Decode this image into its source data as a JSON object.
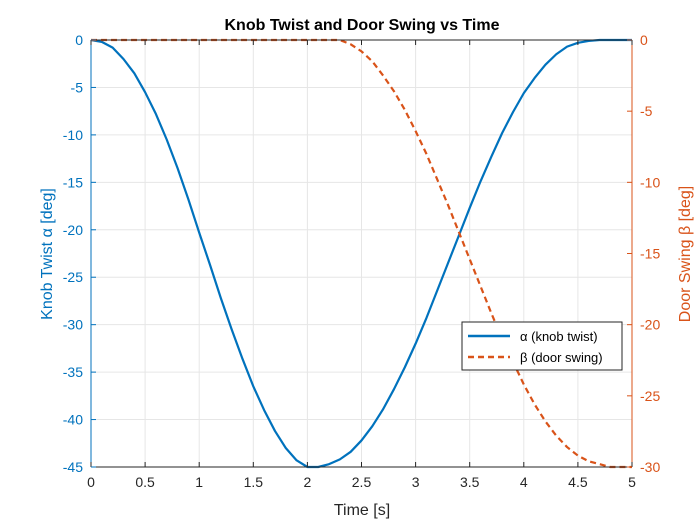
{
  "chart_data": {
    "type": "line",
    "title": "Knob Twist and Door Swing vs Time",
    "xlabel": "Time [s]",
    "ylabel_left": "Knob Twist α [deg]",
    "ylabel_right": "Door Swing β [deg]",
    "xlim": [
      0,
      5
    ],
    "ylim_left": [
      -45,
      0
    ],
    "ylim_right": [
      -30,
      0
    ],
    "x_ticks": [
      0,
      0.5,
      1,
      1.5,
      2,
      2.5,
      3,
      3.5,
      4,
      4.5,
      5
    ],
    "x_tick_labels": [
      "0",
      "0.5",
      "1",
      "1.5",
      "2",
      "2.5",
      "3",
      "3.5",
      "4",
      "4.5",
      "5"
    ],
    "y_left_ticks": [
      0,
      -5,
      -10,
      -15,
      -20,
      -25,
      -30,
      -35,
      -40,
      -45
    ],
    "y_left_tick_labels": [
      "0",
      "-5",
      "-10",
      "-15",
      "-20",
      "-25",
      "-30",
      "-35",
      "-40",
      "-45"
    ],
    "y_right_ticks": [
      0,
      -5,
      -10,
      -15,
      -20,
      -25,
      -30
    ],
    "y_right_tick_labels": [
      "0",
      "-5",
      "-10",
      "-15",
      "-20",
      "-25",
      "-30"
    ],
    "grid": true,
    "legend_position": "lower-right",
    "series": [
      {
        "name": "α (knob twist)",
        "axis": "left",
        "style": "solid",
        "color": "#0072BD",
        "x": [
          0,
          0.1,
          0.2,
          0.3,
          0.4,
          0.5,
          0.6,
          0.7,
          0.8,
          0.9,
          1.0,
          1.1,
          1.2,
          1.3,
          1.4,
          1.5,
          1.6,
          1.7,
          1.8,
          1.9,
          2.0,
          2.1,
          2.2,
          2.3,
          2.4,
          2.5,
          2.6,
          2.7,
          2.8,
          2.9,
          3.0,
          3.1,
          3.2,
          3.3,
          3.4,
          3.5,
          3.6,
          3.7,
          3.8,
          3.9,
          4.0,
          4.1,
          4.2,
          4.3,
          4.4,
          4.5,
          4.6,
          4.7,
          4.8,
          4.9,
          5.0
        ],
        "y": [
          0,
          -0.2,
          -0.8,
          -2.0,
          -3.5,
          -5.5,
          -7.8,
          -10.5,
          -13.5,
          -16.8,
          -20.3,
          -23.7,
          -27.2,
          -30.5,
          -33.6,
          -36.5,
          -39.0,
          -41.2,
          -43.0,
          -44.3,
          -45.0,
          -45.0,
          -44.7,
          -44.2,
          -43.4,
          -42.2,
          -40.7,
          -38.9,
          -36.8,
          -34.5,
          -32.0,
          -29.3,
          -26.4,
          -23.5,
          -20.6,
          -17.7,
          -14.9,
          -12.3,
          -9.8,
          -7.6,
          -5.6,
          -4.0,
          -2.6,
          -1.5,
          -0.7,
          -0.3,
          -0.1,
          0,
          0,
          0,
          0
        ]
      },
      {
        "name": "β (door swing)",
        "axis": "right",
        "style": "dashed",
        "color": "#D95319",
        "x": [
          0,
          0.5,
          1.0,
          1.5,
          2.0,
          2.2,
          2.3,
          2.4,
          2.5,
          2.6,
          2.7,
          2.8,
          2.9,
          3.0,
          3.1,
          3.2,
          3.3,
          3.4,
          3.5,
          3.6,
          3.7,
          3.8,
          3.9,
          4.0,
          4.1,
          4.2,
          4.3,
          4.4,
          4.5,
          4.6,
          4.7,
          4.8,
          4.9,
          5.0
        ],
        "y": [
          0,
          0,
          0,
          0,
          0,
          0,
          0,
          -0.3,
          -0.8,
          -1.5,
          -2.5,
          -3.6,
          -4.9,
          -6.4,
          -8.0,
          -9.8,
          -11.6,
          -13.5,
          -15.4,
          -17.3,
          -19.2,
          -21.0,
          -22.6,
          -24.2,
          -25.6,
          -26.8,
          -27.8,
          -28.6,
          -29.2,
          -29.6,
          -29.8,
          -30.0,
          -30.0,
          -30.0
        ]
      }
    ]
  },
  "colors": {
    "left_axis": "#0072BD",
    "right_axis": "#D95319",
    "grid": "#e6e6e6",
    "frame": "#262626"
  }
}
